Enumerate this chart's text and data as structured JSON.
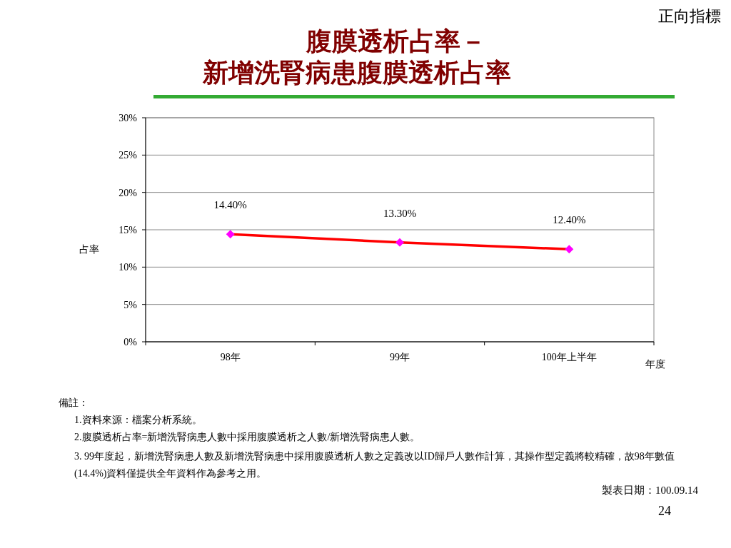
{
  "chart_data": {
    "type": "line",
    "title": "腹膜透析占率－",
    "subtitle": "新增洗腎病患腹膜透析占率",
    "ylabel": "占率",
    "xlabel": "年度",
    "categories": [
      "98年",
      "99年",
      "100年上半年"
    ],
    "series": [
      {
        "color": "#ff0000",
        "colors": [
          "#ff00ff",
          "#ff00ff",
          "#ff00ff"
        ],
        "values": [
          14.4,
          13.3,
          12.4
        ]
      }
    ],
    "value_labels": [
      "14.40%",
      "13.30%",
      "12.40%"
    ],
    "ylim": [
      0,
      30
    ],
    "yticks": [
      {
        "value": 0,
        "label": "0%"
      },
      {
        "value": 5,
        "label": "5%"
      },
      {
        "value": 10,
        "label": "10%"
      },
      {
        "value": 15,
        "label": "15%"
      },
      {
        "value": 20,
        "label": "20%"
      },
      {
        "value": 25,
        "label": "25%"
      },
      {
        "value": 30,
        "label": "30%"
      }
    ],
    "grid": "y",
    "marker": "diamond",
    "line_style": "solid",
    "annotations": [
      "正向指標",
      "備註：",
      "1.資料來源：檔案分析系統。",
      "2.腹膜透析占率=新增洗腎病患人數中採用腹膜透析之人數/新增洗腎病患人數。",
      "3. 99年度起，新增洗腎病患人數及新增洗腎病患中採用腹膜透析人數之定義改以ID歸戶人數作計算，其操作型定義將較精確，故98年數值(14.4%)資料僅提供全年資料作為參考之用。",
      "製表日期：100.09.14",
      "24"
    ]
  }
}
